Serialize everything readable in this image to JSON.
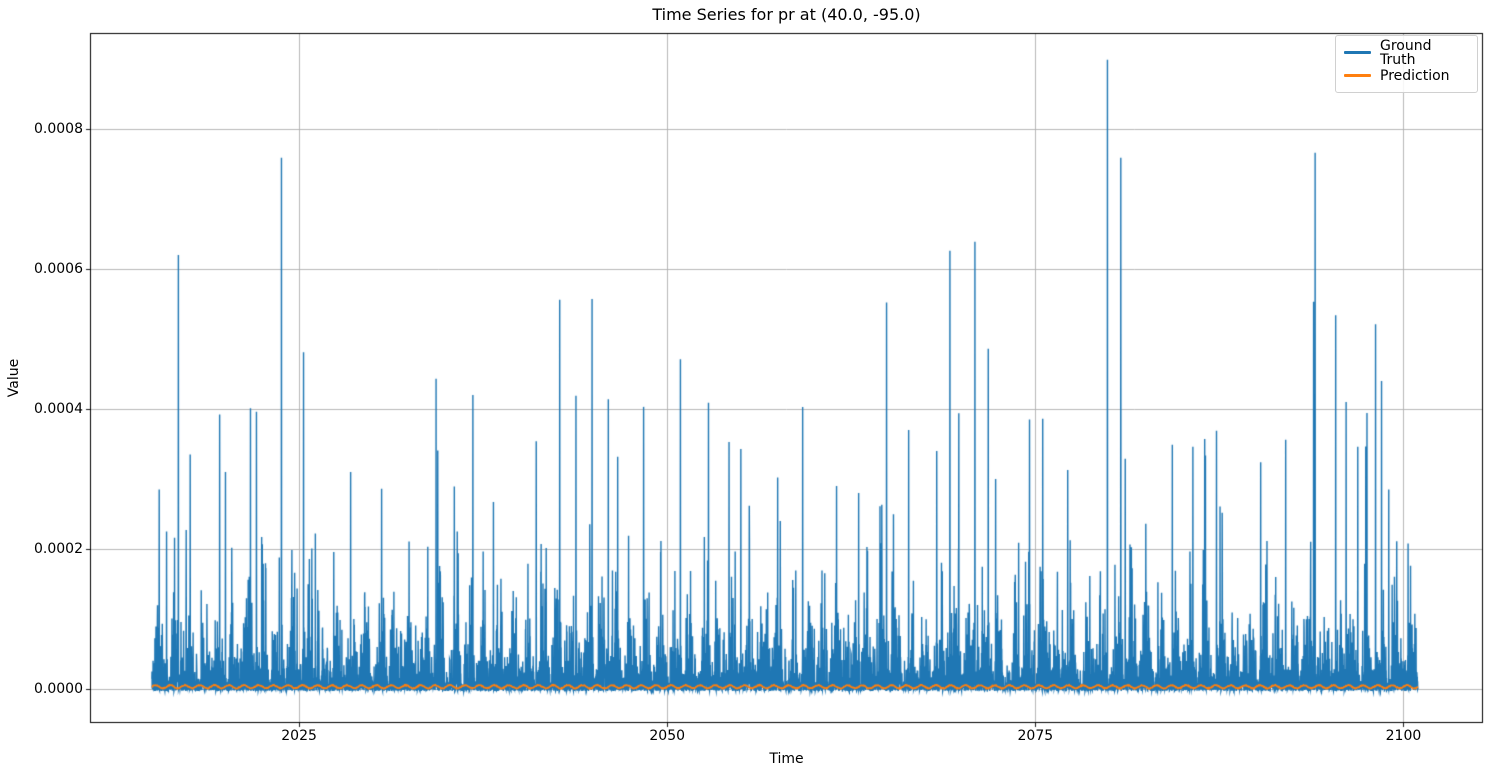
{
  "chart_data": {
    "type": "line",
    "title": "Time Series for pr at (40.0, -95.0)",
    "xlabel": "Time",
    "ylabel": "Value",
    "xlim": [
      2010.8,
      2105.4
    ],
    "ylim": [
      -4.86e-05,
      0.0009371
    ],
    "x_tick_values": [
      2025,
      2050,
      2075,
      2100
    ],
    "x_tick_labels": [
      "2025",
      "2050",
      "2075",
      "2100"
    ],
    "y_tick_values": [
      0.0,
      0.0002,
      0.0004,
      0.0006,
      0.0008
    ],
    "y_tick_labels": [
      "0.0000",
      "0.0002",
      "0.0004",
      "0.0006",
      "0.0008"
    ],
    "grid": true,
    "grid_color": "#b0b0b0",
    "axis_color": "#000000",
    "background": "#ffffff",
    "legend": {
      "position": "upper right",
      "entries": [
        {
          "label": "Ground Truth",
          "color": "#1f77b4"
        },
        {
          "label": "Prediction",
          "color": "#ff7f0e"
        }
      ]
    },
    "series": [
      {
        "name": "Ground Truth",
        "color": "#1f77b4",
        "x_start": 2015.0,
        "x_end": 2101.0,
        "description": "Dense daily precipitation-like spike series resting on zero",
        "notable_peaks": [
          [
            2015.5,
            0.000285
          ],
          [
            2016.0,
            0.000225
          ],
          [
            2016.8,
            0.00062
          ],
          [
            2017.6,
            0.000335
          ],
          [
            2019.6,
            0.000392
          ],
          [
            2020.0,
            0.00031
          ],
          [
            2021.7,
            0.000401
          ],
          [
            2022.1,
            0.000396
          ],
          [
            2023.8,
            0.000759
          ],
          [
            2025.3,
            0.000481
          ],
          [
            2026.1,
            0.000222
          ],
          [
            2028.5,
            0.00031
          ],
          [
            2030.6,
            0.000286
          ],
          [
            2034.3,
            0.000443
          ],
          [
            2036.8,
            0.00042
          ],
          [
            2038.2,
            0.000267
          ],
          [
            2041.1,
            0.000354
          ],
          [
            2042.7,
            0.000556
          ],
          [
            2043.8,
            0.000419
          ],
          [
            2044.9,
            0.000557
          ],
          [
            2046.0,
            0.000414
          ],
          [
            2048.4,
            0.000403
          ],
          [
            2050.9,
            0.000471
          ],
          [
            2052.8,
            0.000409
          ],
          [
            2054.2,
            0.000353
          ],
          [
            2055.0,
            0.000343
          ],
          [
            2057.5,
            0.000302
          ],
          [
            2059.2,
            0.000403
          ],
          [
            2061.5,
            0.00029
          ],
          [
            2063.0,
            0.00028
          ],
          [
            2064.9,
            0.000552
          ],
          [
            2066.4,
            0.00037
          ],
          [
            2068.3,
            0.00034
          ],
          [
            2069.2,
            0.000626
          ],
          [
            2069.8,
            0.000394
          ],
          [
            2070.9,
            0.000639
          ],
          [
            2071.8,
            0.000486
          ],
          [
            2072.3,
            0.0003
          ],
          [
            2074.6,
            0.000385
          ],
          [
            2075.5,
            0.000386
          ],
          [
            2077.2,
            0.000313
          ],
          [
            2079.9,
            0.000899
          ],
          [
            2080.8,
            0.000759
          ],
          [
            2081.1,
            0.000329
          ],
          [
            2084.3,
            0.000349
          ],
          [
            2085.7,
            0.000346
          ],
          [
            2086.5,
            0.000357
          ],
          [
            2087.3,
            0.000369
          ],
          [
            2090.3,
            0.000324
          ],
          [
            2092.0,
            0.000356
          ],
          [
            2093.9,
            0.000553
          ],
          [
            2094.0,
            0.000766
          ],
          [
            2095.4,
            0.000534
          ],
          [
            2096.1,
            0.00041
          ],
          [
            2096.9,
            0.000346
          ],
          [
            2098.1,
            0.000521
          ],
          [
            2099.0,
            0.000285
          ]
        ],
        "synthesis": {
          "seed": 42,
          "points_per_year": 96,
          "dry_probability": 0.42,
          "exp_scale": 4.5e-05,
          "noise_cap": 0.00044
        }
      },
      {
        "name": "Prediction",
        "color": "#ff7f0e",
        "x_start": 2015.0,
        "x_end": 2101.0,
        "description": "Nearly flat wavy line just above zero",
        "mean": 3.2e-06,
        "amplitude": 2.2e-06,
        "period_years": 1,
        "synthesis": {
          "seed": 7,
          "jitter": 1.2e-06
        }
      }
    ]
  }
}
